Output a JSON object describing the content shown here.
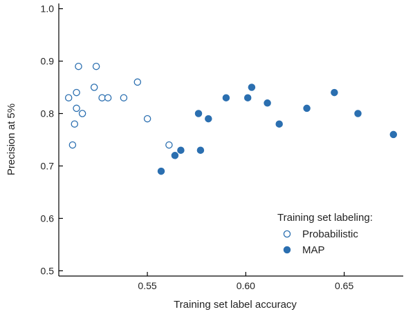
{
  "chart_data": {
    "type": "scatter",
    "xlabel": "Training set label accuracy",
    "ylabel": "Precision at 5%",
    "xlim": [
      0.505,
      0.68
    ],
    "ylim": [
      0.49,
      1.01
    ],
    "xticks": [
      0.55,
      0.6,
      0.65
    ],
    "xtick_labels": [
      "0.55",
      "0.60",
      "0.65"
    ],
    "yticks": [
      0.5,
      0.6,
      0.7,
      0.8,
      0.9,
      1.0
    ],
    "ytick_labels": [
      "0.5",
      "0.6",
      "0.7",
      "0.8",
      "0.9",
      "1.0"
    ],
    "grid": false,
    "legend": {
      "title": "Training set labeling:",
      "placement": "bottom-right"
    },
    "colors": {
      "series": "#2b6fb0",
      "axis": "#000000"
    },
    "series": [
      {
        "name": "Probabilistic",
        "marker": "open-circle",
        "points": [
          [
            0.51,
            0.83
          ],
          [
            0.512,
            0.74
          ],
          [
            0.513,
            0.78
          ],
          [
            0.514,
            0.84
          ],
          [
            0.514,
            0.81
          ],
          [
            0.515,
            0.89
          ],
          [
            0.517,
            0.8
          ],
          [
            0.523,
            0.85
          ],
          [
            0.524,
            0.89
          ],
          [
            0.527,
            0.83
          ],
          [
            0.53,
            0.83
          ],
          [
            0.538,
            0.83
          ],
          [
            0.545,
            0.86
          ],
          [
            0.55,
            0.79
          ],
          [
            0.561,
            0.74
          ]
        ]
      },
      {
        "name": "MAP",
        "marker": "filled-circle",
        "points": [
          [
            0.557,
            0.69
          ],
          [
            0.564,
            0.72
          ],
          [
            0.567,
            0.73
          ],
          [
            0.576,
            0.8
          ],
          [
            0.577,
            0.73
          ],
          [
            0.581,
            0.79
          ],
          [
            0.59,
            0.83
          ],
          [
            0.601,
            0.83
          ],
          [
            0.603,
            0.85
          ],
          [
            0.611,
            0.82
          ],
          [
            0.617,
            0.78
          ],
          [
            0.631,
            0.81
          ],
          [
            0.645,
            0.84
          ],
          [
            0.657,
            0.8
          ],
          [
            0.675,
            0.76
          ]
        ]
      }
    ]
  }
}
